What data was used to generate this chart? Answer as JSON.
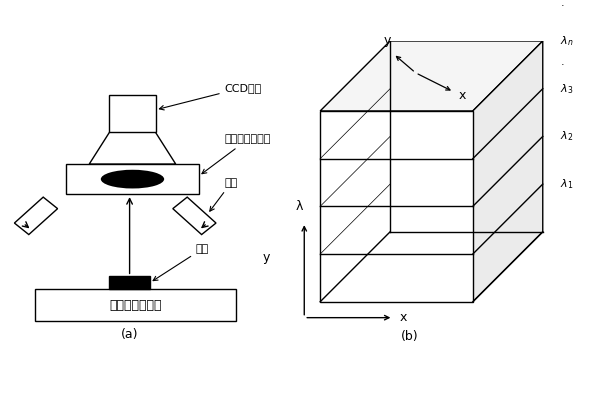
{
  "bg_color": "#ffffff",
  "title_a": "(a)",
  "title_b": "(b)",
  "labels": {
    "ccd": "CCD相机",
    "filter": "滤光片或滤波器",
    "light_source": "光源",
    "sample": "样品",
    "stage": "不可移动载物台"
  },
  "font_size": 8,
  "lw": 1.0
}
